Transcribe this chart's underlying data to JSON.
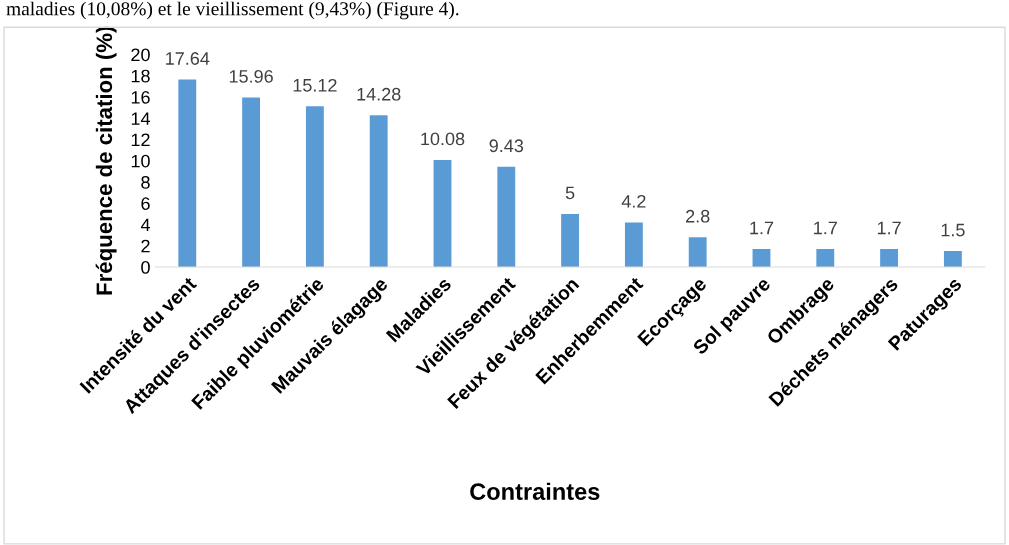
{
  "chart_data": {
    "type": "bar",
    "xlabel": "Contraintes",
    "ylabel": "Fréquence de citation (%)",
    "annotations": [
      "maladies (10,08%) et le vieillissement (9,43%) (Figure 4)."
    ],
    "categories": [
      "Intensité du vent",
      "Attaques d'insectes",
      "Faible pluviométrie",
      "Mauvais élagage",
      "Maladies",
      "Vieillissement",
      "Feux de végétation",
      "Enherbemment",
      "Ecorçage",
      "Sol pauvre",
      "Ombrage",
      "Déchets ménagers",
      "Paturages"
    ],
    "values": [
      17.64,
      15.96,
      15.12,
      14.28,
      10.08,
      9.43,
      5,
      4.2,
      2.8,
      1.7,
      1.7,
      1.7,
      1.5
    ],
    "color": "#5b9bd5",
    "data_labels": true,
    "grid": false,
    "legend": false,
    "ylim": [
      0,
      20
    ],
    "yticks": [
      0,
      2,
      4,
      6,
      8,
      10,
      12,
      14,
      16,
      18,
      20
    ]
  }
}
